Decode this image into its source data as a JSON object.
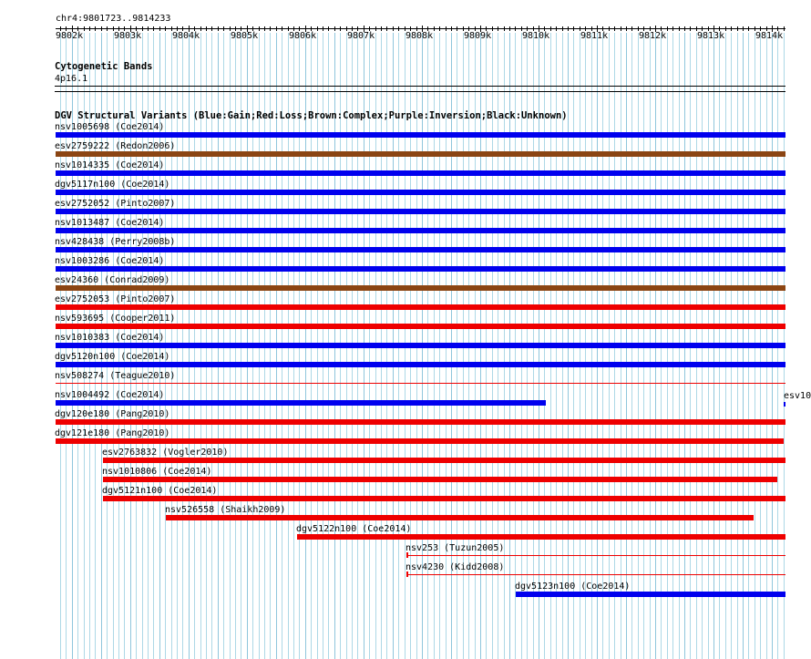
{
  "ruler": {
    "position_label": "chr4:9801723..9814233",
    "ticks": [
      "9802k",
      "9803k",
      "9804k",
      "9805k",
      "9806k",
      "9807k",
      "9808k",
      "9809k",
      "9810k",
      "9811k",
      "9812k",
      "9813k",
      "9814k"
    ],
    "start_bp": 9801723,
    "end_bp": 9814233
  },
  "cytoband": {
    "title": "Cytogenetic Bands",
    "band": "4p16.1"
  },
  "dgv": {
    "title": "DGV Structural Variants (Blue:Gain;Red:Loss;Brown:Complex;Purple:Inversion;Black:Unknown)",
    "colors": {
      "gain": "#0000ee",
      "loss": "#ee0000",
      "complex": "#8b4513",
      "grid": "#add8e6"
    },
    "variants": [
      {
        "label": "nsv1005698 (Coe2014)",
        "type": "gain",
        "start": 9801723,
        "end": 9814233
      },
      {
        "label": "esv2759222 (Redon2006)",
        "type": "complex",
        "start": 9801723,
        "end": 9814233
      },
      {
        "label": "nsv1014335 (Coe2014)",
        "type": "gain",
        "start": 9801723,
        "end": 9814233
      },
      {
        "label": "dgv5117n100 (Coe2014)",
        "type": "gain",
        "start": 9801723,
        "end": 9814233
      },
      {
        "label": "esv2752052 (Pinto2007)",
        "type": "gain",
        "start": 9801723,
        "end": 9814233
      },
      {
        "label": "nsv1013487 (Coe2014)",
        "type": "gain",
        "start": 9801723,
        "end": 9814233
      },
      {
        "label": "nsv428438 (Perry2008b)",
        "type": "gain",
        "start": 9801723,
        "end": 9814233
      },
      {
        "label": "nsv1003286 (Coe2014)",
        "type": "gain",
        "start": 9801723,
        "end": 9814233
      },
      {
        "label": "esv24360 (Conrad2009)",
        "type": "complex",
        "start": 9801723,
        "end": 9814233
      },
      {
        "label": "esv2752053 (Pinto2007)",
        "type": "loss",
        "start": 9801723,
        "end": 9814233
      },
      {
        "label": "nsv593695 (Cooper2011)",
        "type": "loss",
        "start": 9801723,
        "end": 9814233
      },
      {
        "label": "nsv1010383 (Coe2014)",
        "type": "gain",
        "start": 9801723,
        "end": 9814233
      },
      {
        "label": "dgv5120n100 (Coe2014)",
        "type": "gain",
        "start": 9801723,
        "end": 9814233
      },
      {
        "label": "nsv508274 (Teague2010)",
        "type": "loss",
        "start": 9801723,
        "end": 9814233,
        "thin": true
      },
      {
        "label": "nsv1004492 (Coe2014)",
        "type": "gain",
        "start": 9801723,
        "end": 9810121
      },
      {
        "label": "dgv120e180 (Pang2010)",
        "type": "loss",
        "start": 9801723,
        "end": 9814233
      },
      {
        "label": "dgv121e180 (Pang2010)",
        "type": "loss",
        "start": 9801723,
        "end": 9814200
      },
      {
        "label": "esv2763832 (Vogler2010)",
        "type": "loss",
        "start": 9802528,
        "end": 9814233
      },
      {
        "label": "nsv1010806 (Coe2014)",
        "type": "loss",
        "start": 9802528,
        "end": 9814090
      },
      {
        "label": "dgv5121n100 (Coe2014)",
        "type": "loss",
        "start": 9802528,
        "end": 9814233
      },
      {
        "label": "nsv526558 (Shaikh2009)",
        "type": "loss",
        "start": 9803620,
        "end": 9813680
      },
      {
        "label": "dgv5122n100 (Coe2014)",
        "type": "loss",
        "start": 9805860,
        "end": 9814233
      },
      {
        "label": "nsv253 (Tuzun2005)",
        "type": "loss",
        "start": 9807735,
        "end": 9814233,
        "thin": true
      },
      {
        "label": "nsv4230 (Kidd2008)",
        "type": "loss",
        "start": 9807735,
        "end": 9814233,
        "thin": true
      },
      {
        "label": "dgv5123n100 (Coe2014)",
        "type": "gain",
        "start": 9809605,
        "end": 9814233
      }
    ],
    "offscreen_label": "esv10"
  }
}
